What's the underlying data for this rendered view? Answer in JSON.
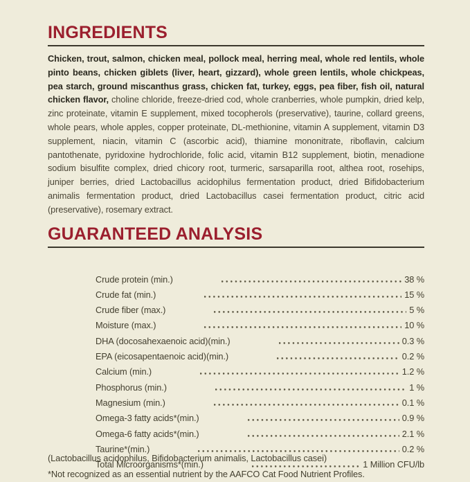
{
  "page": {
    "background_color": "#efecdb",
    "accent_color": "#9b1f2e",
    "rule_color": "#3b382c"
  },
  "ingredients": {
    "title": "INGREDIENTS",
    "text_bold": "Chicken, trout, salmon, chicken meal, pollock meal, herring meal, whole red lentils, whole pinto beans, chicken giblets (liver, heart, gizzard), whole green lentils, whole chickpeas, pea starch, ground miscanthus grass, chicken fat, turkey, eggs, pea fiber, fish oil, natural chicken flavor, ",
    "text_regular": "choline chloride, freeze-dried cod, whole cranberries, whole pumpkin, dried kelp, zinc proteinate, vitamin E supplement, mixed tocopherols (preservative), taurine, collard greens, whole pears, whole apples, copper proteinate, DL-methionine, vitamin A supplement, vitamin D3 supplement, niacin, vitamin C (ascorbic acid), thiamine mononitrate, riboflavin, calcium pantothenate, pyridoxine hydrochloride, folic acid, vitamin B12 supplement, biotin, menadione sodium bisulfite complex, dried chicory root, turmeric, sarsaparilla root, althea root, rosehips, juniper berries, dried Lactobacillus acidophilus fermentation product, dried Bifidobacterium animalis fermentation product, dried Lactobacillus casei fermentation product, citric acid (preservative), rosemary extract."
  },
  "guaranteed_analysis": {
    "title": "GUARANTEED ANALYSIS",
    "rows": [
      {
        "label": "Crude protein (min.)",
        "value": "38 %"
      },
      {
        "label": "Crude fat (min.)",
        "value": "15 %"
      },
      {
        "label": "Crude fiber (max.)",
        "value": "5 %"
      },
      {
        "label": "Moisture (max.)",
        "value": "10 %"
      },
      {
        "label": "DHA (docosahexaenoic acid)(min.)",
        "value": "0.3 %"
      },
      {
        "label": "EPA (eicosapentaenoic acid)(min.)",
        "value": "0.2 %"
      },
      {
        "label": "Calcium (min.)",
        "value": "1.2 %"
      },
      {
        "label": "Phosphorus (min.)",
        "value": "1 %"
      },
      {
        "label": "Magnesium (min.)",
        "value": "0.1 %"
      },
      {
        "label": "Omega-3 fatty acids*(min.)",
        "value": "0.9 %"
      },
      {
        "label": "Omega-6 fatty acids*(min.)",
        "value": "2.1 %"
      },
      {
        "label": "Taurine*(min.)",
        "value": "0.2 %"
      },
      {
        "label": "Total Microorganisms*(min.)",
        "value": "1 Million CFU/lb"
      }
    ],
    "organisms_note": "(Lactobacillus acidophilus, Bifidobacterium animalis, Lactobacillus casei)",
    "footnote": "*Not recognized as an essential nutrient by the AAFCO Cat Food Nutrient Profiles."
  }
}
